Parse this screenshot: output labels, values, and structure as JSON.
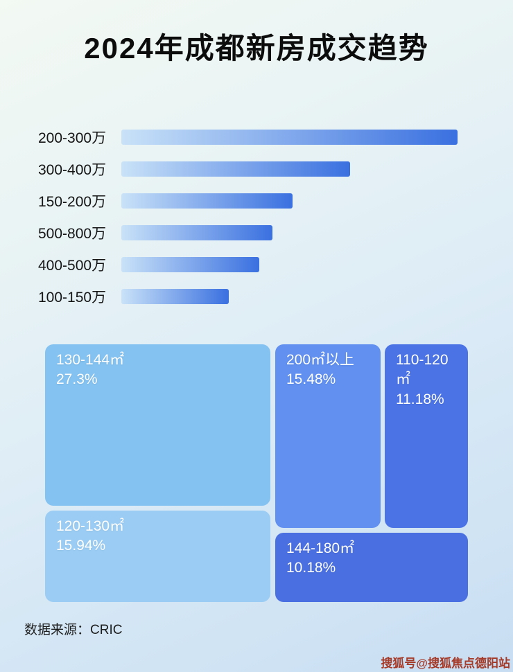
{
  "title": "2024年成都新房成交趋势",
  "chart_data": [
    {
      "type": "bar",
      "orientation": "horizontal",
      "categories": [
        "200-300万",
        "300-400万",
        "150-200万",
        "500-800万",
        "400-500万",
        "100-150万"
      ],
      "values_pct_of_max": [
        100,
        68,
        51,
        45,
        41,
        32
      ],
      "value_labels_shown": false,
      "bar_gradient": [
        "#c9e2f8",
        "#3a70e0"
      ],
      "grid": false,
      "legend": false
    },
    {
      "type": "treemap",
      "items": [
        {
          "label": "130-144㎡",
          "value_pct": 27.3,
          "value_label": "27.3%",
          "color": "#84c2f1"
        },
        {
          "label": "200㎡以上",
          "value_pct": 15.48,
          "value_label": "15.48%",
          "color": "#6190f0"
        },
        {
          "label": "110-120㎡",
          "value_pct": 11.18,
          "value_label": "11.18%",
          "color": "#4b73e5"
        },
        {
          "label": "120-130㎡",
          "value_pct": 15.94,
          "value_label": "15.94%",
          "color": "#9bcdf4"
        },
        {
          "label": "144-180㎡",
          "value_pct": 10.18,
          "value_label": "10.18%",
          "color": "#4a6fe0"
        }
      ],
      "legend": false
    }
  ],
  "footer": {
    "source_label": "数据来源：CRIC"
  },
  "watermark": "搜狐号@搜狐焦点德阳站"
}
